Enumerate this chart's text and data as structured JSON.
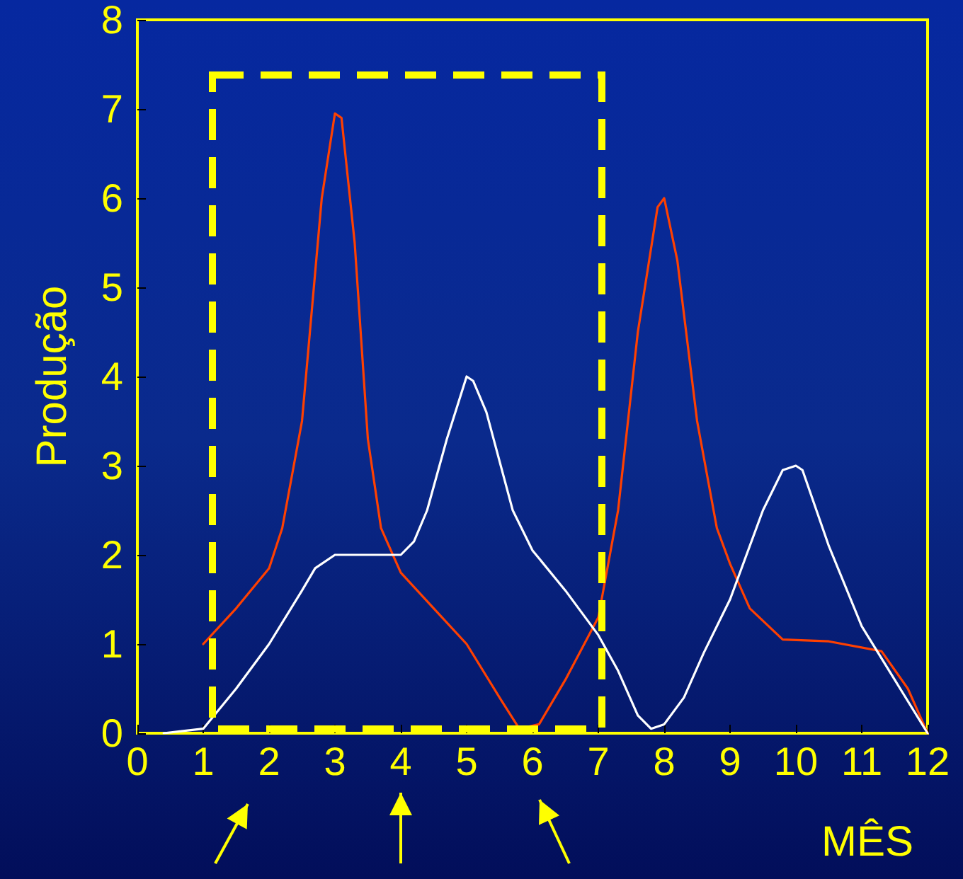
{
  "chart_data": {
    "type": "line",
    "xlabel": "MÊS",
    "ylabel": "Produção",
    "xlim": [
      0,
      12
    ],
    "xticks": [
      0,
      1,
      2,
      3,
      4,
      5,
      6,
      7,
      8,
      9,
      10,
      11,
      12
    ],
    "ylim": [
      0,
      8
    ],
    "yticks": [
      0,
      1,
      2,
      3,
      4,
      5,
      6,
      7,
      8
    ],
    "grid": false,
    "marker": "none",
    "line_style": "solid",
    "series": [
      {
        "color": "#ff4000",
        "x": [
          1,
          1.5,
          2,
          2.2,
          2.5,
          2.8,
          3,
          3.1,
          3.3,
          3.5,
          3.7,
          4,
          4.5,
          5,
          5.5,
          5.8,
          6.1,
          6.5,
          7,
          7.3,
          7.6,
          7.9,
          8,
          8.2,
          8.5,
          8.8,
          9,
          9.3,
          9.8,
          10.5,
          11.3,
          11.7,
          12
        ],
        "values": [
          1,
          1.4,
          1.85,
          2.3,
          3.5,
          6,
          6.95,
          6.9,
          5.5,
          3.3,
          2.3,
          1.8,
          1.4,
          1,
          0.4,
          0.05,
          0.1,
          0.6,
          1.3,
          2.5,
          4.5,
          5.9,
          6,
          5.3,
          3.5,
          2.3,
          1.9,
          1.4,
          1.05,
          1.03,
          0.92,
          0.5,
          0
        ]
      },
      {
        "color": "#ffffff",
        "x": [
          0.4,
          1,
          1.5,
          2,
          2.5,
          2.7,
          3,
          4,
          4.2,
          4.4,
          4.7,
          5,
          5.1,
          5.3,
          5.7,
          6,
          6.5,
          7,
          7.3,
          7.6,
          7.8,
          8,
          8.3,
          8.6,
          9,
          9.5,
          9.8,
          10,
          10.1,
          10.5,
          11,
          11.5,
          12
        ],
        "values": [
          0,
          0.05,
          0.5,
          1,
          1.6,
          1.85,
          2,
          2,
          2.15,
          2.5,
          3.3,
          4,
          3.95,
          3.6,
          2.5,
          2.05,
          1.6,
          1.1,
          0.7,
          0.2,
          0.05,
          0.1,
          0.4,
          0.9,
          1.5,
          2.5,
          2.95,
          3,
          2.95,
          2.1,
          1.2,
          0.6,
          0
        ]
      }
    ]
  }
}
